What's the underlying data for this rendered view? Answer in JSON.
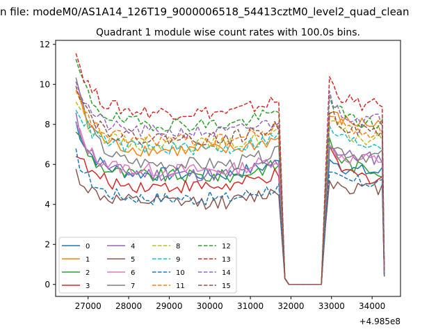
{
  "figure": {
    "suptitle": "n file: modeM0/AS1A14_126T19_9000006518_54413cztM0_level2_quad_clean",
    "title": "Quadrant 1 module wise count rates with 100.0s bins.",
    "x_offset_label": "+4.985e8"
  },
  "chart_data": {
    "type": "line",
    "title": "Quadrant 1 module wise count rates with 100.0s bins.",
    "xlabel": "",
    "ylabel": "",
    "x_offset": 498500000,
    "xlim": [
      26200,
      34700
    ],
    "ylim": [
      -0.6,
      12.2
    ],
    "xticks": [
      27000,
      28000,
      29000,
      30000,
      31000,
      32000,
      33000,
      34000
    ],
    "yticks": [
      0,
      2,
      4,
      6,
      8,
      10,
      12
    ],
    "grid": false,
    "legend": {
      "position": "lower-left",
      "columns": 4
    },
    "segments": [
      {
        "x_start": 26700,
        "x_end": 31750,
        "active": true
      },
      {
        "x_start": 31850,
        "x_end": 32750,
        "active": false
      },
      {
        "x_start": 32850,
        "x_end": 34250,
        "active": true
      },
      {
        "x_start": 34300,
        "x_end": 34300,
        "active": true
      }
    ],
    "series": [
      {
        "name": "0",
        "color": "#1f77b4",
        "dash": "solid",
        "start": 8.1,
        "base": 5.5,
        "post_peak": 6.5,
        "post_base": 5.6,
        "end": 0.45
      },
      {
        "name": "1",
        "color": "#ff7f0e",
        "dash": "solid",
        "start": 9.8,
        "base": 6.7,
        "post_peak": 8.6,
        "post_base": 8.0,
        "end": 0.6
      },
      {
        "name": "2",
        "color": "#2ca02c",
        "dash": "solid",
        "start": 7.8,
        "base": 5.4,
        "post_peak": 7.2,
        "post_base": 5.7,
        "end": 0.5
      },
      {
        "name": "3",
        "color": "#d62728",
        "dash": "solid",
        "start": 6.7,
        "base": 4.9,
        "post_peak": 6.6,
        "post_base": 5.3,
        "end": 0.5
      },
      {
        "name": "4",
        "color": "#9467bd",
        "dash": "solid",
        "start": 8.3,
        "base": 5.5,
        "post_peak": 7.0,
        "post_base": 6.3,
        "end": 0.5
      },
      {
        "name": "5",
        "color": "#8c564b",
        "dash": "solid",
        "start": 5.6,
        "base": 4.1,
        "post_peak": 5.2,
        "post_base": 4.8,
        "end": 0.4
      },
      {
        "name": "6",
        "color": "#e377c2",
        "dash": "solid",
        "start": 8.0,
        "base": 5.7,
        "post_peak": 6.8,
        "post_base": 6.2,
        "end": 0.5
      },
      {
        "name": "7",
        "color": "#7f7f7f",
        "dash": "solid",
        "start": 10.4,
        "base": 6.0,
        "post_peak": 7.2,
        "post_base": 6.4,
        "end": 0.5
      },
      {
        "name": "8",
        "color": "#bcbd22",
        "dash": "dashed",
        "start": 9.3,
        "base": 7.0,
        "post_peak": 8.3,
        "post_base": 7.2,
        "end": 0.6
      },
      {
        "name": "9",
        "color": "#17becf",
        "dash": "dashed",
        "start": 9.0,
        "base": 6.8,
        "post_peak": 7.9,
        "post_base": 7.0,
        "end": 0.6
      },
      {
        "name": "10",
        "color": "#1f77b4",
        "dash": "dashed",
        "start": 6.5,
        "base": 4.3,
        "post_peak": 5.4,
        "post_base": 5.1,
        "end": 0.4
      },
      {
        "name": "11",
        "color": "#ff7f0e",
        "dash": "dashed",
        "start": 9.5,
        "base": 7.2,
        "post_peak": 8.7,
        "post_base": 7.6,
        "end": 0.6
      },
      {
        "name": "12",
        "color": "#2ca02c",
        "dash": "dashed",
        "start": 11.2,
        "base": 8.0,
        "post_peak": 9.5,
        "post_base": 8.0,
        "end": 0.6
      },
      {
        "name": "13",
        "color": "#d62728",
        "dash": "dashed",
        "start": 11.6,
        "base": 8.6,
        "post_peak": 10.3,
        "post_base": 8.9,
        "end": 0.7
      },
      {
        "name": "14",
        "color": "#9467bd",
        "dash": "dashed",
        "start": 10.3,
        "base": 7.6,
        "post_peak": 9.4,
        "post_base": 8.2,
        "end": 0.6
      },
      {
        "name": "15",
        "color": "#8c564b",
        "dash": "dashed",
        "start": 10.2,
        "base": 7.3,
        "post_peak": 8.8,
        "post_base": 7.6,
        "end": 0.6
      }
    ]
  }
}
